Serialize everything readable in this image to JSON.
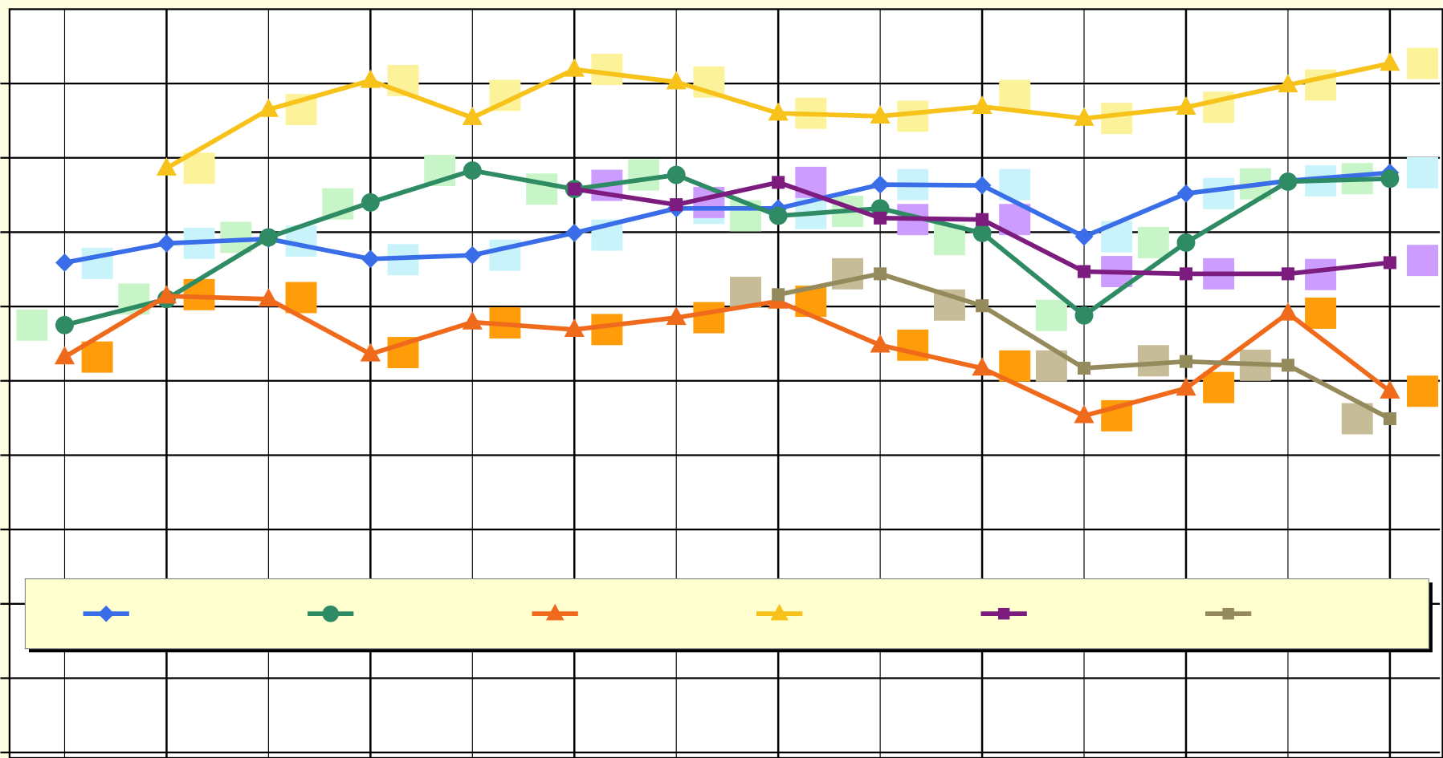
{
  "chart_data": {
    "type": "line",
    "xlim": [
      0.46,
      14.49
    ],
    "xticks": [
      1,
      2,
      3,
      4,
      5,
      6,
      7,
      8,
      9,
      10,
      11,
      12,
      13,
      14
    ],
    "ylim": [
      0,
      10
    ],
    "yticks": [
      0,
      1,
      2,
      3,
      4,
      5,
      6,
      7,
      8,
      9
    ],
    "grid": true,
    "legend": "bottom",
    "series": [
      {
        "color": "#3a6ee8",
        "marker": "diamond",
        "line": true,
        "x": [
          1,
          2,
          3,
          4,
          5,
          6,
          7,
          8,
          9,
          10,
          11,
          12,
          13,
          14
        ],
        "values": [
          6.59,
          6.85,
          6.91,
          6.64,
          6.69,
          6.99,
          7.32,
          7.32,
          7.64,
          7.63,
          6.94,
          7.52,
          7.69,
          7.8
        ]
      },
      {
        "color": "#2e8b63",
        "marker": "circle",
        "line": true,
        "x": [
          1,
          2,
          3,
          4,
          5,
          6,
          7,
          8,
          9,
          10,
          11,
          12,
          13,
          14
        ],
        "values": [
          5.75,
          6.1,
          6.93,
          7.4,
          7.83,
          7.58,
          7.77,
          7.22,
          7.32,
          6.99,
          5.88,
          6.86,
          7.68,
          7.72
        ]
      },
      {
        "color": "#f06a1c",
        "marker": "triangle",
        "line": true,
        "x": [
          1,
          2,
          3,
          4,
          5,
          6,
          7,
          8,
          9,
          10,
          11,
          12,
          13,
          14
        ],
        "values": [
          5.32,
          6.14,
          6.1,
          5.36,
          5.79,
          5.69,
          5.85,
          6.07,
          5.48,
          5.17,
          4.53,
          4.9,
          5.91,
          4.86
        ]
      },
      {
        "color": "#f7c21a",
        "marker": "triangle",
        "line": true,
        "x": [
          2,
          3,
          4,
          5,
          6,
          7,
          8,
          9,
          10,
          11,
          12,
          13,
          14
        ],
        "values": [
          7.86,
          8.65,
          9.04,
          8.54,
          9.19,
          9.02,
          8.6,
          8.56,
          8.69,
          8.53,
          8.68,
          8.98,
          9.27
        ]
      },
      {
        "color": "#7b1c7e",
        "marker": "bar",
        "line": true,
        "x": [
          6,
          7,
          8,
          9,
          10,
          11,
          12,
          13,
          14
        ],
        "values": [
          7.58,
          7.37,
          7.67,
          7.19,
          7.17,
          6.47,
          6.44,
          6.44,
          6.59
        ]
      },
      {
        "color": "#948a5c",
        "marker": "bar",
        "line": true,
        "x": [
          8,
          9,
          10,
          11,
          12,
          13,
          14
        ],
        "values": [
          6.16,
          6.44,
          6.01,
          5.17,
          5.26,
          5.21,
          4.49
        ]
      },
      {
        "color": "#c9f3fb",
        "marker": "square",
        "line": false,
        "x": [
          1.32,
          2.32,
          3.32,
          4.32,
          5.32,
          6.32,
          7.32,
          8.32,
          9.32,
          10.32,
          11.32,
          12.32,
          13.32,
          14.32
        ],
        "values": [
          6.58,
          6.85,
          6.88,
          6.63,
          6.69,
          6.96,
          7.32,
          7.25,
          7.64,
          7.64,
          6.94,
          7.52,
          7.69,
          7.8
        ]
      },
      {
        "color": "#c8f5c8",
        "marker": "square",
        "line": false,
        "x": [
          0.68,
          1.68,
          2.68,
          3.68,
          4.68,
          5.68,
          6.68,
          7.68,
          8.68,
          9.68,
          10.68,
          11.68,
          12.68,
          13.68
        ],
        "values": [
          5.75,
          6.1,
          6.93,
          7.38,
          7.83,
          7.58,
          7.77,
          7.22,
          7.28,
          6.9,
          5.88,
          6.86,
          7.65,
          7.72
        ]
      },
      {
        "color": "#ff9c0a",
        "marker": "square",
        "line": false,
        "x": [
          1.32,
          2.32,
          3.32,
          4.32,
          5.32,
          6.32,
          7.32,
          8.32,
          9.32,
          10.32,
          11.32,
          12.32,
          13.32,
          14.32
        ],
        "values": [
          5.32,
          6.16,
          6.12,
          5.38,
          5.78,
          5.69,
          5.85,
          6.07,
          5.48,
          5.2,
          4.53,
          4.91,
          5.91,
          4.86
        ]
      },
      {
        "color": "#fcf29a",
        "marker": "square",
        "line": false,
        "x": [
          2.32,
          3.32,
          4.32,
          5.32,
          6.32,
          7.32,
          8.32,
          9.32,
          10.32,
          11.32,
          12.32,
          13.32,
          14.32
        ],
        "values": [
          7.86,
          8.65,
          9.04,
          8.84,
          9.19,
          9.02,
          8.6,
          8.56,
          8.84,
          8.53,
          8.68,
          8.98,
          9.27
        ]
      },
      {
        "color": "#cc9cff",
        "marker": "square",
        "line": false,
        "x": [
          6.32,
          7.32,
          8.32,
          9.32,
          10.32,
          11.32,
          12.32,
          13.32,
          14.32
        ],
        "values": [
          7.63,
          7.4,
          7.67,
          7.17,
          7.17,
          6.47,
          6.44,
          6.43,
          6.62
        ]
      },
      {
        "color": "#c7bc98",
        "marker": "square",
        "line": false,
        "x": [
          7.68,
          8.68,
          9.68,
          10.68,
          11.68,
          12.68,
          13.68
        ],
        "values": [
          6.19,
          6.44,
          6.02,
          5.2,
          5.27,
          5.21,
          4.49
        ]
      }
    ]
  }
}
